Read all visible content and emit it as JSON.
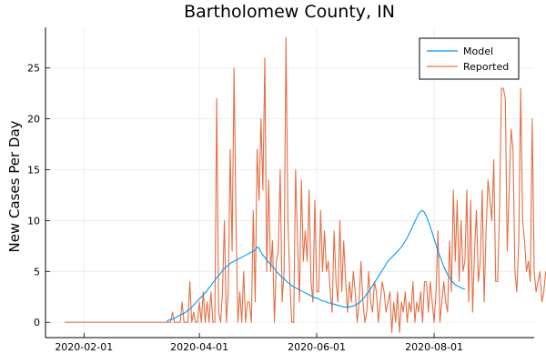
{
  "chart_data": {
    "type": "line",
    "title": "Bartholomew County, IN",
    "xlabel": "",
    "ylabel": "New Cases Per Day",
    "x_start_date": "2020-01-22",
    "x_step_days": 1,
    "xlim": [
      "2020-01-12",
      "2020-09-22"
    ],
    "ylim": [
      -1.5,
      29
    ],
    "x_ticks": [
      "2020-02-01",
      "2020-04-01",
      "2020-06-01",
      "2020-08-01"
    ],
    "y_ticks": [
      0,
      5,
      10,
      15,
      20,
      25
    ],
    "grid": true,
    "legend_position": "top-right",
    "series": [
      {
        "name": "Reported",
        "color": "#e26f46",
        "start": "2020-01-22",
        "values": [
          0,
          0,
          0,
          0,
          0,
          0,
          0,
          0,
          0,
          0,
          0,
          0,
          0,
          0,
          0,
          0,
          0,
          0,
          0,
          0,
          0,
          0,
          0,
          0,
          0,
          0,
          0,
          0,
          0,
          0,
          0,
          0,
          0,
          0,
          0,
          0,
          0,
          0,
          0,
          0,
          0,
          0,
          0,
          0,
          0,
          0,
          0,
          0,
          0,
          0,
          0,
          0,
          0,
          0,
          0,
          0,
          1,
          0,
          0,
          0,
          0,
          2,
          0,
          0,
          0,
          4,
          0,
          1,
          0,
          0,
          2,
          0,
          3,
          0,
          2,
          0,
          3,
          0,
          0,
          22,
          1,
          0,
          3,
          10,
          0,
          3,
          17,
          7,
          25,
          10,
          0,
          3,
          0,
          5,
          0,
          2,
          2,
          0,
          11,
          2,
          17,
          12,
          20,
          13,
          26,
          5,
          14,
          5,
          8,
          0,
          6,
          7,
          15,
          2,
          5,
          28,
          10,
          4,
          0,
          0,
          15,
          8,
          2,
          14,
          6,
          9,
          6,
          13,
          4,
          2,
          12,
          3,
          3,
          11,
          5,
          9,
          5,
          6,
          3,
          1,
          9,
          4,
          2,
          10,
          3,
          8,
          4,
          1,
          4,
          2,
          5,
          3,
          0,
          2,
          6,
          2,
          0,
          1,
          5,
          2,
          1,
          4,
          3,
          0,
          2,
          4,
          3,
          1,
          2,
          3,
          -1,
          2,
          0,
          3,
          -1,
          2,
          1,
          3,
          0,
          2,
          1,
          4,
          0,
          2,
          1,
          3,
          0,
          4,
          4,
          1,
          4,
          2,
          0,
          3,
          9,
          0,
          2,
          4,
          2,
          1,
          8,
          3,
          13,
          6,
          12,
          4,
          10,
          5,
          6,
          13,
          2,
          12,
          1,
          7,
          11,
          4,
          6,
          13,
          2,
          9,
          14,
          12,
          10,
          16,
          4,
          4,
          11,
          23,
          23,
          22,
          7,
          13,
          19,
          17,
          5,
          3,
          8,
          23,
          10,
          8,
          5,
          6,
          4,
          20,
          5,
          3,
          4,
          5,
          2,
          3,
          5,
          4,
          1,
          0,
          3,
          4,
          1,
          9,
          8,
          6,
          3,
          0,
          1,
          3,
          10,
          2,
          4,
          2
        ]
      },
      {
        "name": "Model",
        "color": "#009af9",
        "start": "2020-03-15",
        "values": [
          0.1,
          0.2,
          0.3,
          0.3,
          0.4,
          0.5,
          0.6,
          0.7,
          0.8,
          0.9,
          1.0,
          1.2,
          1.3,
          1.5,
          1.7,
          1.9,
          2.1,
          2.3,
          2.5,
          2.7,
          2.9,
          3.1,
          3.4,
          3.6,
          3.9,
          4.1,
          4.4,
          4.6,
          4.8,
          5.1,
          5.3,
          5.5,
          5.6,
          5.8,
          5.9,
          6.0,
          6.1,
          6.2,
          6.3,
          6.4,
          6.5,
          6.6,
          6.7,
          6.8,
          6.9,
          7.0,
          7.1,
          7.4,
          7.3,
          6.9,
          6.6,
          6.4,
          6.1,
          5.9,
          5.7,
          5.5,
          5.3,
          5.0,
          4.8,
          4.6,
          4.4,
          4.3,
          4.1,
          3.9,
          3.8,
          3.6,
          3.5,
          3.4,
          3.3,
          3.2,
          3.1,
          3.0,
          2.9,
          2.8,
          2.7,
          2.6,
          2.5,
          2.4,
          2.4,
          2.3,
          2.2,
          2.1,
          2.1,
          2.0,
          1.9,
          1.9,
          1.8,
          1.8,
          1.7,
          1.7,
          1.6,
          1.6,
          1.5,
          1.5,
          1.5,
          1.5,
          1.6,
          1.6,
          1.7,
          1.8,
          1.9,
          2.1,
          2.3,
          2.5,
          2.8,
          3.0,
          3.3,
          3.6,
          3.9,
          4.2,
          4.5,
          4.8,
          5.1,
          5.4,
          5.7,
          6.0,
          6.2,
          6.4,
          6.6,
          6.8,
          7.0,
          7.2,
          7.4,
          7.7,
          8.0,
          8.3,
          8.7,
          9.1,
          9.5,
          9.9,
          10.3,
          10.7,
          10.9,
          11.0,
          10.8,
          10.4,
          9.9,
          9.4,
          8.8,
          8.2,
          7.6,
          7.0,
          6.5,
          6.0,
          5.5,
          5.1,
          4.7,
          4.4,
          4.1,
          3.9,
          3.7,
          3.6,
          3.5,
          3.4,
          3.3,
          3.3
        ]
      }
    ]
  }
}
